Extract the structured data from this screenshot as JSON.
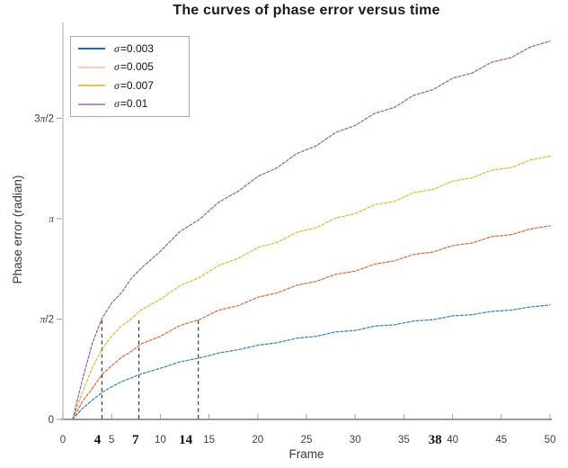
{
  "figure": {
    "background": "#ffffff"
  },
  "chart_data": {
    "type": "line",
    "title": "The curves of phase error versus time",
    "xlabel": "Frame",
    "ylabel": "Phase error (radian)",
    "xlim": [
      0,
      50
    ],
    "ylim": [
      0,
      6.2
    ],
    "grid": false,
    "legend_position": "top-left",
    "x_ticks": [
      0,
      5,
      10,
      15,
      20,
      25,
      30,
      35,
      40,
      45,
      50
    ],
    "y_ticks": [
      {
        "value": 0,
        "label": "0"
      },
      {
        "value": 1.5708,
        "label": "π/2"
      },
      {
        "value": 3.1416,
        "label": "π"
      },
      {
        "value": 4.7124,
        "label": "3π/2"
      }
    ],
    "x": [
      1,
      2,
      3,
      4,
      5,
      6,
      7,
      8,
      10,
      12,
      14,
      16,
      18,
      20,
      22,
      24,
      26,
      28,
      30,
      32,
      34,
      36,
      38,
      40,
      42,
      44,
      46,
      48,
      50
    ],
    "series": [
      {
        "name": "σ=0.003",
        "sigma": 0.003,
        "symbol": "σ",
        "value_label": "=0.003",
        "color": "#337fc4",
        "legend_color": "#1a6fae",
        "values": [
          0,
          0.17,
          0.3,
          0.42,
          0.51,
          0.59,
          0.65,
          0.71,
          0.8,
          0.9,
          0.96,
          1.04,
          1.09,
          1.16,
          1.2,
          1.27,
          1.3,
          1.37,
          1.39,
          1.46,
          1.48,
          1.54,
          1.56,
          1.62,
          1.64,
          1.69,
          1.71,
          1.76,
          1.79
        ]
      },
      {
        "name": "σ=0.005",
        "sigma": 0.005,
        "symbol": "σ",
        "value_label": "=0.005",
        "color": "#db6836",
        "legend_color": "#f6cebe",
        "values": [
          0,
          0.28,
          0.48,
          0.7,
          0.84,
          0.97,
          1.06,
          1.18,
          1.3,
          1.47,
          1.56,
          1.71,
          1.78,
          1.91,
          1.98,
          2.1,
          2.16,
          2.27,
          2.32,
          2.43,
          2.48,
          2.58,
          2.62,
          2.72,
          2.76,
          2.86,
          2.89,
          2.98,
          3.03
        ]
      },
      {
        "name": "σ=0.007",
        "sigma": 0.007,
        "symbol": "σ",
        "value_label": "=0.007",
        "color": "#efb42f",
        "legend_color": "#f0c040",
        "values": [
          0,
          0.42,
          0.8,
          1.1,
          1.3,
          1.46,
          1.57,
          1.71,
          1.88,
          2.09,
          2.22,
          2.41,
          2.52,
          2.69,
          2.77,
          2.93,
          3.0,
          3.15,
          3.22,
          3.36,
          3.41,
          3.55,
          3.6,
          3.73,
          3.78,
          3.9,
          3.94,
          4.06,
          4.12
        ]
      },
      {
        "name": "σ=0.01",
        "sigma": 0.01,
        "symbol": "σ",
        "value_label": "=0.01",
        "color": "#9d57ad",
        "legend_color": "#c08cc8",
        "values": [
          0,
          0.62,
          1.18,
          1.58,
          1.82,
          1.98,
          2.2,
          2.36,
          2.63,
          2.94,
          3.13,
          3.4,
          3.57,
          3.8,
          3.94,
          4.16,
          4.28,
          4.49,
          4.6,
          4.79,
          4.88,
          5.07,
          5.16,
          5.34,
          5.42,
          5.59,
          5.66,
          5.83,
          5.92
        ]
      }
    ],
    "annotations": {
      "dashed_top_value": 1.5708,
      "items": [
        {
          "label": "4",
          "line_x": 4.0,
          "label_x": 3.55,
          "has_line": true
        },
        {
          "label": "7",
          "line_x": 7.8,
          "label_x": 7.45,
          "has_line": true
        },
        {
          "label": "14",
          "line_x": 13.9,
          "label_x": 12.6,
          "has_line": true
        },
        {
          "label": "38",
          "line_x": null,
          "label_x": 38.2,
          "has_line": false
        }
      ]
    },
    "colors": {
      "axis_x": "#9a9a9a",
      "axis_y": "#bdbdbd",
      "tick": "#9e9e9e",
      "tick_label": "#3d3d3d",
      "axis_label": "#3a3a3a",
      "bold_label": "#111111",
      "annotation_line": "#2a2a2a",
      "title": "#1a1a1a",
      "legend_border": "#a9a9a9"
    }
  }
}
